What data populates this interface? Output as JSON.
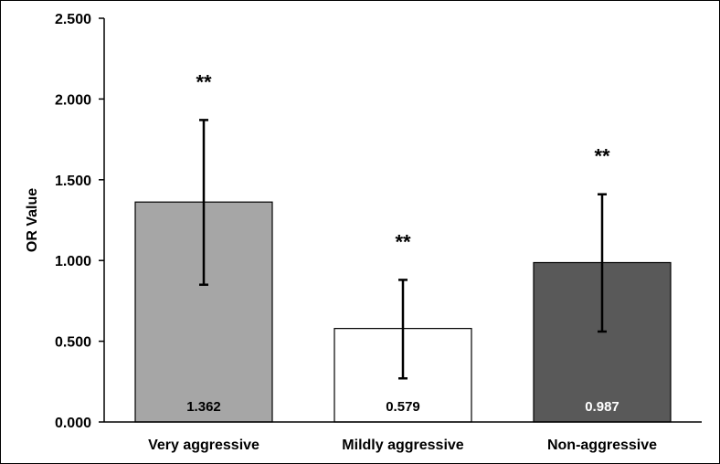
{
  "chart_data": {
    "type": "bar",
    "ylabel": "OR Value",
    "xlabel": "",
    "ylim": [
      0,
      2.5
    ],
    "yticks": [
      "0.000",
      "0.500",
      "1.000",
      "1.500",
      "2.000",
      "2.500"
    ],
    "grid": false,
    "categories": [
      "Very aggressive",
      "Mildly aggressive",
      "Non-aggressive"
    ],
    "values": [
      1.362,
      0.579,
      0.987
    ],
    "value_labels": [
      "1.362",
      "0.579",
      "0.987"
    ],
    "error_low": [
      0.85,
      0.27,
      0.56
    ],
    "error_high": [
      1.87,
      0.88,
      1.41
    ],
    "annotations": [
      "**",
      "**",
      "**"
    ],
    "bar_colors": [
      "#a6a6a6",
      "#ffffff",
      "#595959"
    ],
    "value_label_colors": [
      "#000000",
      "#000000",
      "#ffffff"
    ]
  }
}
